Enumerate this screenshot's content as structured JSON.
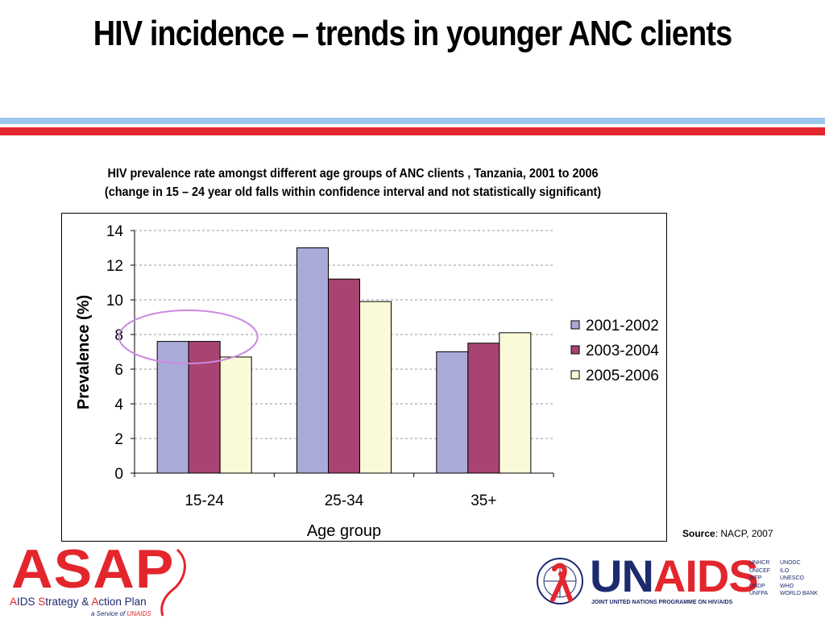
{
  "slide": {
    "title": "HIV incidence – trends in younger ANC clients",
    "subtitle_line1": "HIV prevalence rate amongst different age groups of ANC clients , Tanzania, 2001 to 2006",
    "subtitle_line2": "(change in 15 – 24 year old falls within confidence interval and not statistically significant)",
    "source_label": "Source",
    "source_text": ": NACP, 2007"
  },
  "colors": {
    "stripe_blue": "#9cc8ee",
    "stripe_red": "#e3262d",
    "series": [
      "#aaaad8",
      "#a84472",
      "#fafad8"
    ],
    "highlight_ellipse": "#cc88e0"
  },
  "chart_data": {
    "type": "bar",
    "title": "",
    "xlabel": "Age group",
    "ylabel": "Prevalence (%)",
    "ylim": [
      0,
      14
    ],
    "yticks": [
      0,
      2,
      4,
      6,
      8,
      10,
      12,
      14
    ],
    "grid": true,
    "legend": "right",
    "categories": [
      "15-24",
      "25-34",
      "35+"
    ],
    "series": [
      {
        "name": "2001-2002",
        "values": [
          7.6,
          13.0,
          7.0
        ]
      },
      {
        "name": "2003-2004",
        "values": [
          7.6,
          11.2,
          7.5
        ]
      },
      {
        "name": "2005-2006",
        "values": [
          6.7,
          9.9,
          8.1
        ]
      }
    ],
    "annotation": "ellipse highlighting 15-24 group"
  },
  "logos": {
    "asap_word": "ASAP",
    "asap_tag_1": "A",
    "asap_tag_2": "IDS ",
    "asap_tag_3": "S",
    "asap_tag_4": "trategy & ",
    "asap_tag_5": "A",
    "asap_tag_6": "ction Plan",
    "asap_service": "a Service of ",
    "asap_service_brand": "UNAIDS",
    "unaids_word_1": "UN",
    "unaids_word_2": "AIDS",
    "unaids_tag": "JOINT UNITED NATIONS PROGRAMME ON HIV/AIDS",
    "cosponsors": [
      "UNHCR",
      "UNODC",
      "UNICEF",
      "ILO",
      "WFP",
      "UNESCO",
      "UNDP",
      "WHO",
      "UNFPA",
      "WORLD BANK"
    ]
  }
}
